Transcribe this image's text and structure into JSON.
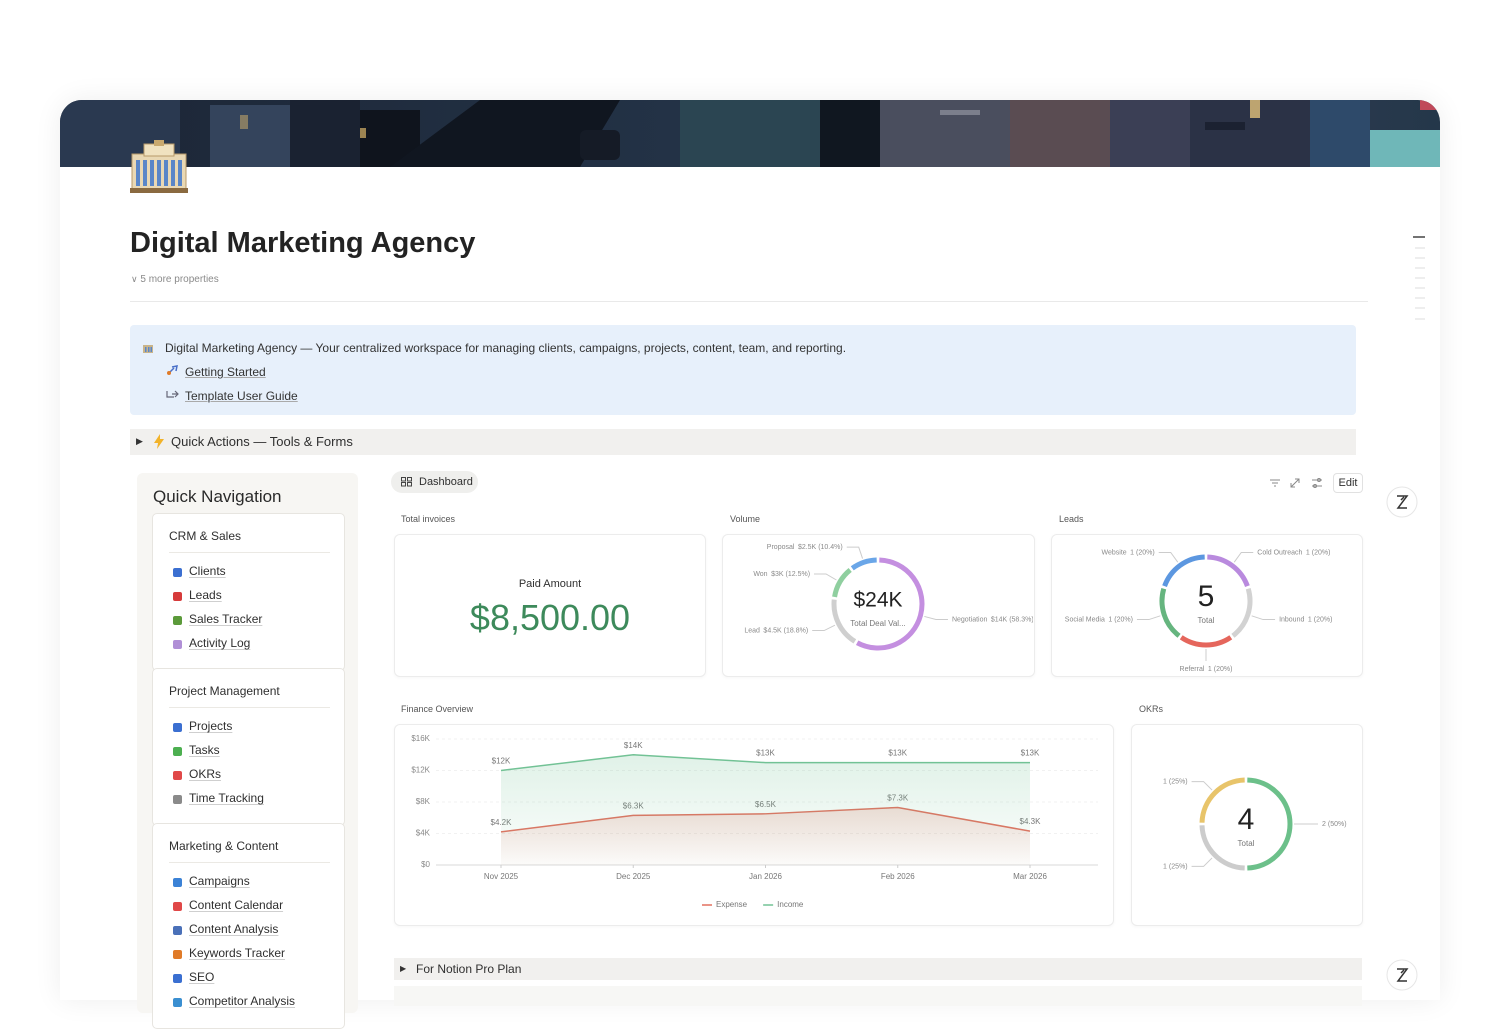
{
  "header": {
    "title": "Digital Marketing Agency",
    "properties_toggle": "5 more properties"
  },
  "callout": {
    "text": "Digital Marketing Agency — Your centralized workspace for managing clients, campaigns, projects, content, team, and reporting.",
    "links": [
      "Getting Started",
      "Template User Guide"
    ]
  },
  "quick_actions": "Quick Actions — Tools & Forms",
  "navigation": {
    "title": "Quick Navigation",
    "sections": [
      {
        "title": "CRM & Sales",
        "items": [
          "Clients",
          "Leads",
          "Sales Tracker",
          "Activity Log"
        ]
      },
      {
        "title": "Project Management",
        "items": [
          "Projects",
          "Tasks",
          "OKRs",
          "Time Tracking"
        ]
      },
      {
        "title": "Marketing & Content",
        "items": [
          "Campaigns",
          "Content Calendar",
          "Content Analysis",
          "Keywords Tracker",
          "SEO",
          "Competitor Analysis"
        ]
      }
    ]
  },
  "dashboard": {
    "tab": "Dashboard",
    "edit": "Edit",
    "invoices": {
      "title": "Total invoices",
      "label": "Paid Amount",
      "amount": "$8,500.00"
    }
  },
  "pro_toggle": "For Notion Pro Plan",
  "chart_data": [
    {
      "type": "donut",
      "title": "Volume",
      "total": 24000,
      "total_label": "$24K",
      "total_caption": "Total Deal Val...",
      "categories": [
        "Negotiation",
        "Lead",
        "Won",
        "Proposal"
      ],
      "values": [
        14000,
        4500,
        3000,
        2500
      ],
      "value_labels": [
        "$14K",
        "$4.5K",
        "$3K",
        "$2.5K"
      ],
      "percents": [
        58.3,
        18.8,
        12.5,
        10.4
      ],
      "percent_labels": [
        "(58.3%)",
        "(18.8%)",
        "(12.5%)",
        "(10.4%)"
      ],
      "colors": [
        "#c48fe0",
        "#cfcfcf",
        "#8fcf9f",
        "#6aa6e8"
      ]
    },
    {
      "type": "donut",
      "title": "Leads",
      "total": 5,
      "total_caption": "Total",
      "categories": [
        "Cold Outreach",
        "Inbound",
        "Referral",
        "Social Media",
        "Website"
      ],
      "values": [
        1,
        1,
        1,
        1,
        1
      ],
      "percents": [
        20,
        20,
        20,
        20,
        20
      ],
      "percent_labels": [
        "(20%)",
        "(20%)",
        "(20%)",
        "(20%)",
        "(20%)"
      ],
      "colors": [
        "#b98ade",
        "#d2d2d2",
        "#e5665c",
        "#66b57f",
        "#5c97e0"
      ]
    },
    {
      "type": "line",
      "title": "Finance Overview",
      "categories": [
        "Nov 2025",
        "Dec 2025",
        "Jan 2026",
        "Feb 2026",
        "Mar 2026"
      ],
      "series": [
        {
          "name": "Expense",
          "color": "#e2705f",
          "values": [
            4200,
            6300,
            6500,
            7300,
            4300
          ],
          "value_labels": [
            "$4.2K",
            "$6.3K",
            "$6.5K",
            "$7.3K",
            "$4.3K"
          ]
        },
        {
          "name": "Income",
          "color": "#72c295",
          "values": [
            12000,
            14000,
            13000,
            13000,
            13000
          ],
          "value_labels": [
            "$12K",
            "$14K",
            "$13K",
            "$13K",
            "$13K"
          ]
        }
      ],
      "ylim": [
        0,
        16000
      ],
      "yticks": [
        {
          "value": 0,
          "label": "$0"
        },
        {
          "value": 4000,
          "label": "$4K"
        },
        {
          "value": 8000,
          "label": "$8K"
        },
        {
          "value": 12000,
          "label": "$12K"
        },
        {
          "value": 16000,
          "label": "$16K"
        }
      ],
      "grid": true,
      "legend": "bottom"
    },
    {
      "type": "donut",
      "title": "OKRs",
      "total": 4,
      "total_caption": "Total",
      "values": [
        2,
        1,
        1
      ],
      "percents": [
        50,
        25,
        25
      ],
      "percent_labels": [
        "(50%)",
        "(25%)",
        "(25%)"
      ],
      "colors": [
        "#6cc08a",
        "#cccccc",
        "#e8c46a"
      ]
    }
  ]
}
